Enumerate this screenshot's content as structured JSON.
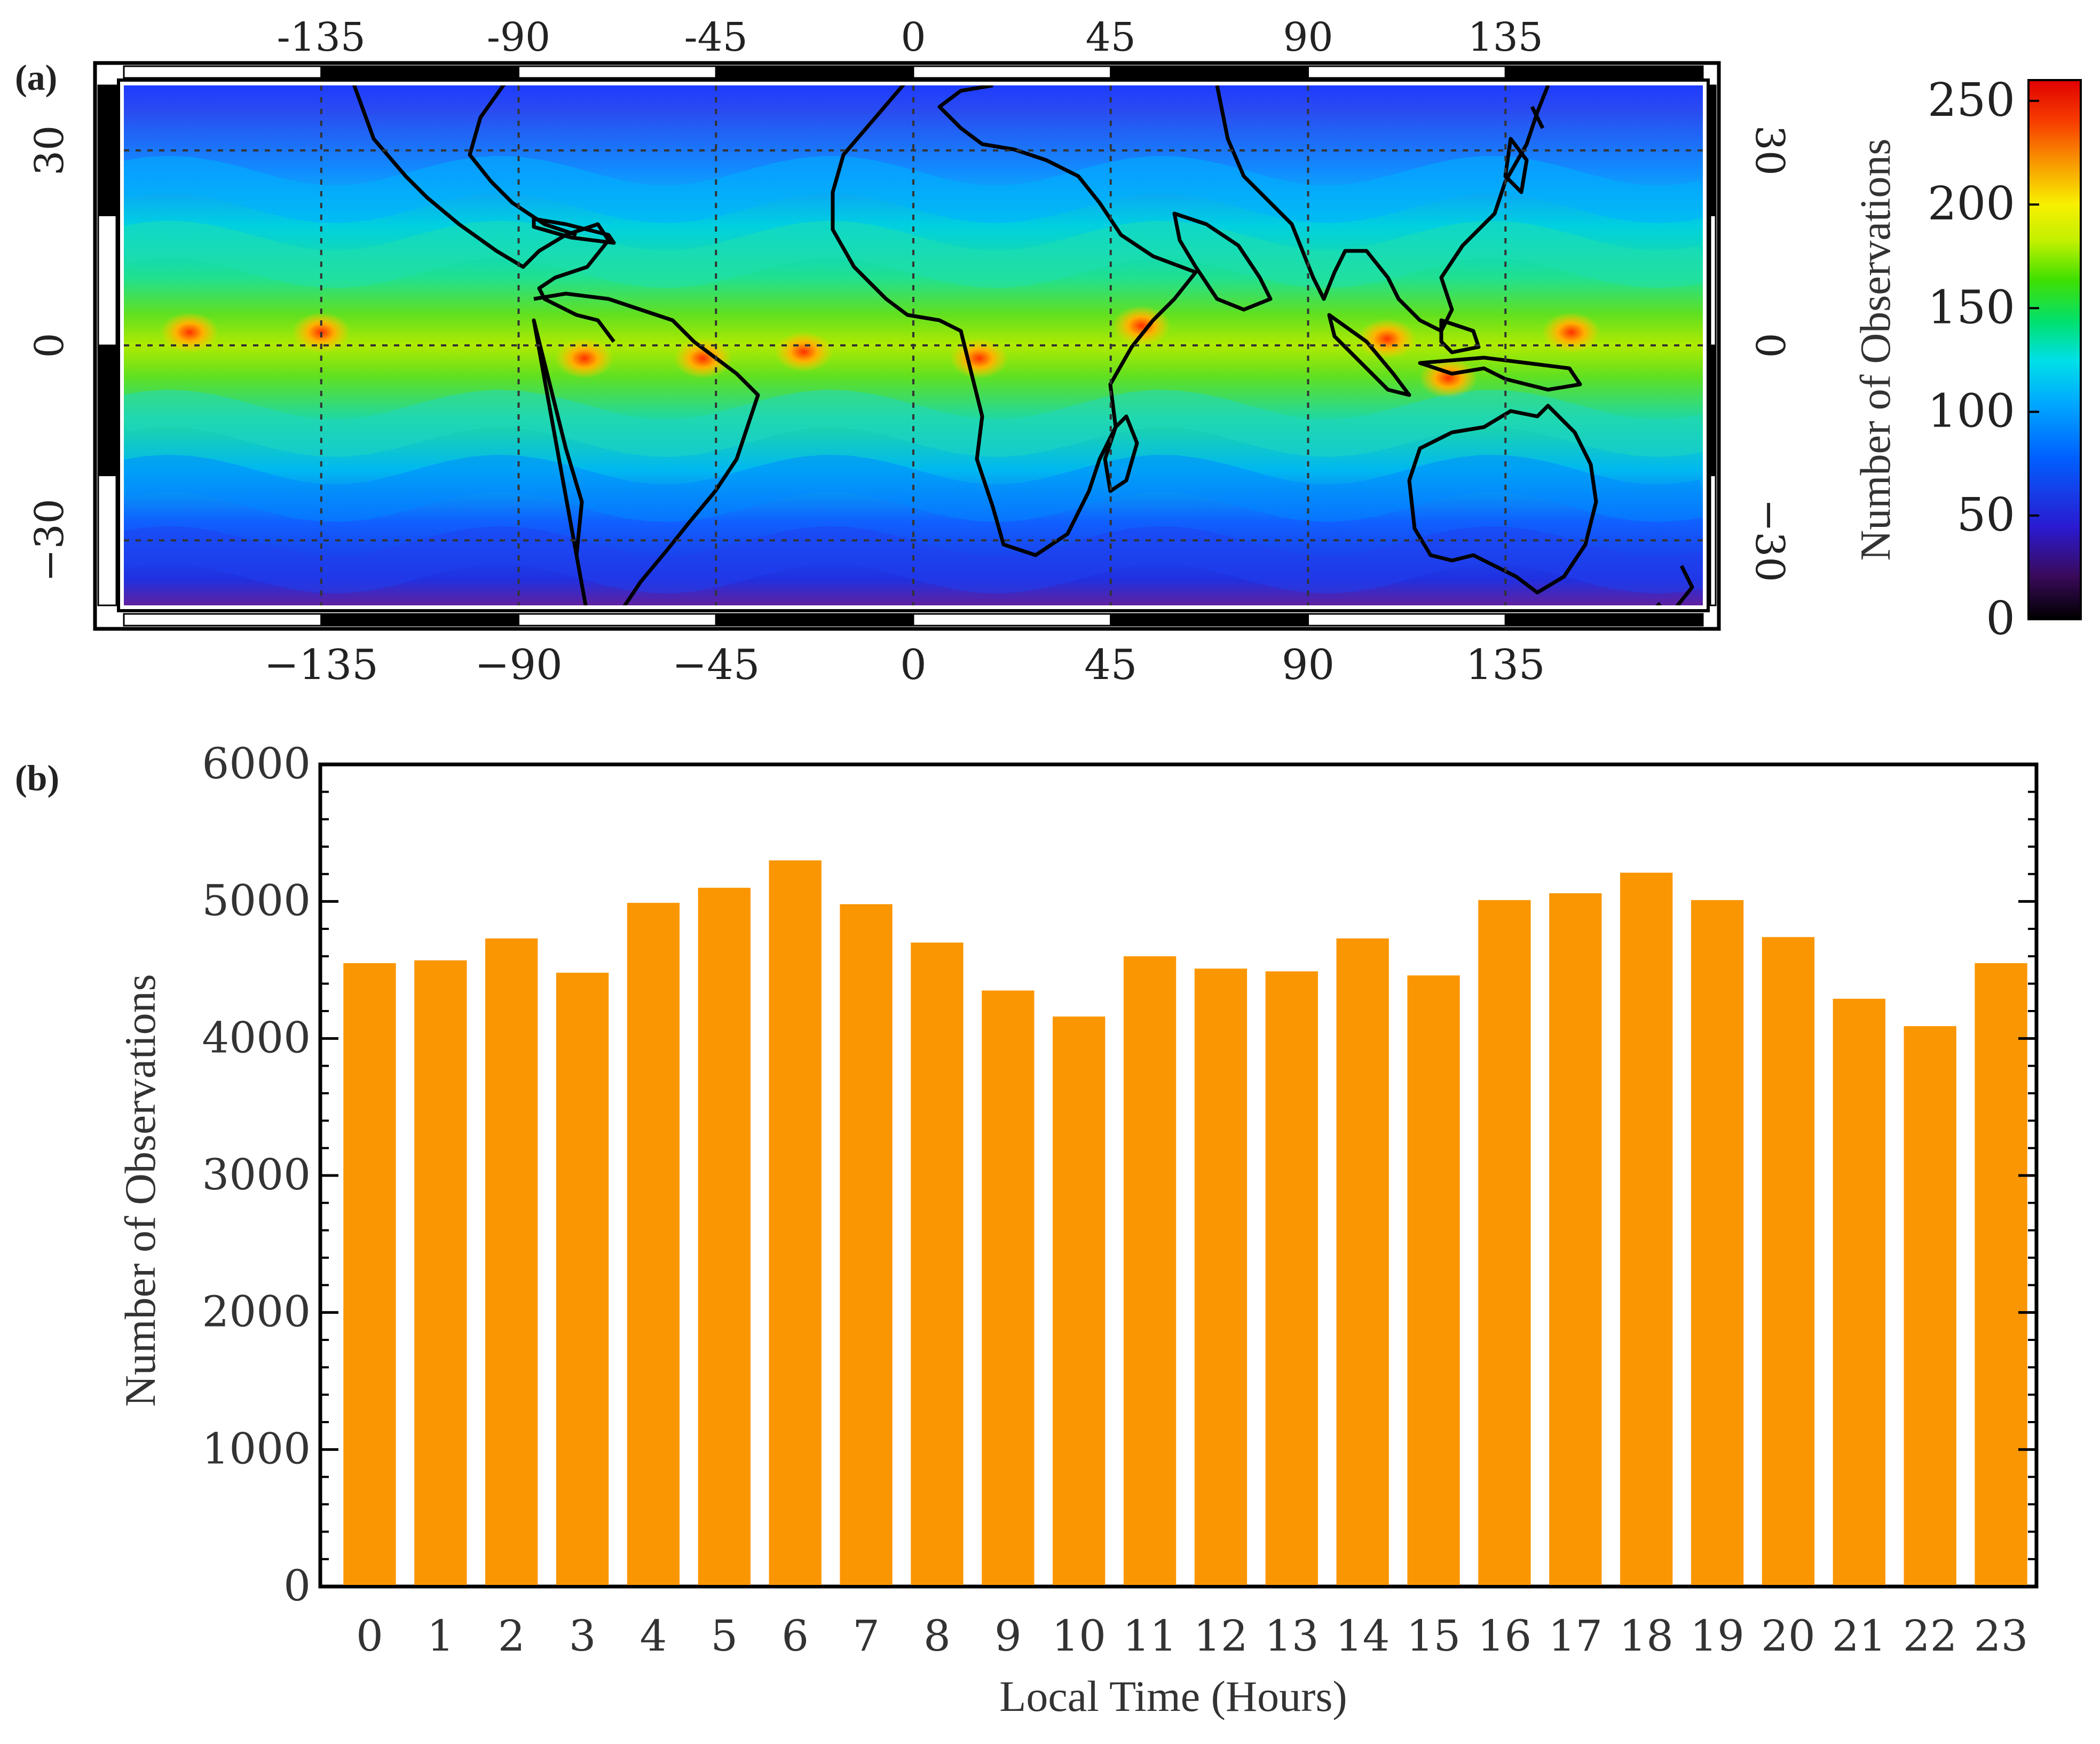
{
  "panel_a": {
    "label": "(a)",
    "lon_ticks_top": [
      "-135",
      "-90",
      "-45",
      "0",
      "45",
      "90",
      "135"
    ],
    "lon_ticks_bottom": [
      "−135",
      "−90",
      "−45",
      "0",
      "45",
      "90",
      "135"
    ],
    "lon_tick_values": [
      -135,
      -90,
      -45,
      0,
      45,
      90,
      135
    ],
    "lat_ticks_left": [
      "30",
      "0",
      "−30"
    ],
    "lat_ticks_right": [
      "30",
      "0",
      "−30"
    ],
    "lat_tick_values": [
      30,
      0,
      -30
    ],
    "lon_range": [
      -180,
      180
    ],
    "lat_range": [
      -40,
      40
    ],
    "colorbar": {
      "label": "Number of Observations",
      "ticks": [
        "0",
        "50",
        "100",
        "150",
        "200",
        "250"
      ],
      "tick_values": [
        0,
        50,
        100,
        150,
        200,
        250
      ],
      "range": [
        0,
        260
      ],
      "colors": [
        "#000000",
        "#3a0a5a",
        "#2a1ad0",
        "#0060ff",
        "#00a8ff",
        "#00e0e8",
        "#00e070",
        "#40e000",
        "#c0f000",
        "#f8f000",
        "#f8a000",
        "#f84000",
        "#e00000"
      ]
    }
  },
  "chart_data": {
    "type": "bar",
    "panel_label": "(b)",
    "title": "",
    "xlabel": "Local Time (Hours)",
    "ylabel": "Number of Observations",
    "categories": [
      "0",
      "1",
      "2",
      "3",
      "4",
      "5",
      "6",
      "7",
      "8",
      "9",
      "10",
      "11",
      "12",
      "13",
      "14",
      "15",
      "16",
      "17",
      "18",
      "19",
      "20",
      "21",
      "22",
      "23"
    ],
    "values": [
      4550,
      4570,
      4730,
      4480,
      4990,
      5100,
      5300,
      4980,
      4700,
      4350,
      4160,
      4600,
      4510,
      4490,
      4730,
      4460,
      5010,
      5060,
      5210,
      5010,
      4740,
      4290,
      4090,
      4550
    ],
    "yticks": [
      "0",
      "1000",
      "2000",
      "3000",
      "4000",
      "5000",
      "6000"
    ],
    "ylim": [
      0,
      6000
    ],
    "bar_color": "#fb9603"
  }
}
